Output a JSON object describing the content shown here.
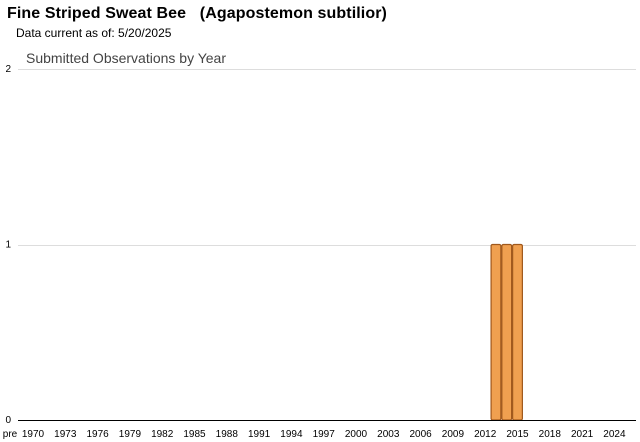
{
  "header": {
    "title": "Fine Striped Sweat Bee   (Agapostemon subtilior)",
    "data_current": "Data current as of: 5/20/2025"
  },
  "chart_data": {
    "type": "bar",
    "title": "Submitted Observations by Year",
    "xlabel": "",
    "ylabel": "",
    "x_tick_labels": [
      "pre",
      "1970",
      "1973",
      "1976",
      "1979",
      "1982",
      "1985",
      "1988",
      "1991",
      "1994",
      "1997",
      "2000",
      "2003",
      "2006",
      "2009",
      "2012",
      "2015",
      "2018",
      "2021",
      "2024"
    ],
    "y_tick_labels": [
      "0",
      "1",
      "2"
    ],
    "ylim": [
      0,
      2
    ],
    "grid": true,
    "legend": "none",
    "categories": [
      "2013",
      "2014",
      "2015"
    ],
    "values": [
      1,
      1,
      1
    ],
    "colors": {
      "bar_fill": "#f0a050",
      "bar_stroke": "#a0581c",
      "gridline": "#dddddd",
      "axis": "#000000"
    }
  }
}
